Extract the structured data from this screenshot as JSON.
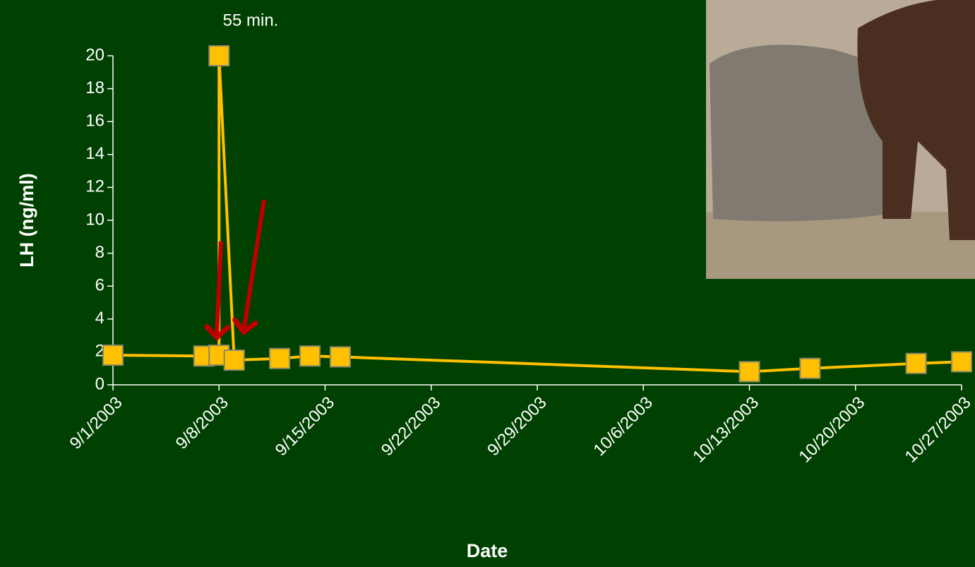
{
  "chart_data": {
    "type": "line",
    "annotation": "55 min.",
    "y_label": "LH (ng/ml)",
    "x_label": "Date",
    "x": [
      "9/1/2003",
      "9/7/2003",
      "9/8/2003",
      "9/8/2003",
      "9/9/2003",
      "9/12/2003",
      "9/14/2003",
      "9/16/2003",
      "10/13/2003",
      "10/17/2003",
      "10/24/2003",
      "10/27/2003"
    ],
    "values": [
      1.8,
      1.75,
      1.8,
      20,
      1.5,
      1.6,
      1.75,
      1.7,
      0.8,
      1.0,
      1.3,
      1.4
    ],
    "color": "#ffc000",
    "xlim": [
      "9/1/2003",
      "10/27/2003"
    ],
    "xticks": [
      "9/1/2003",
      "9/8/2003",
      "9/15/2003",
      "9/22/2003",
      "9/29/2003",
      "10/6/2003",
      "10/13/2003",
      "10/20/2003",
      "10/27/2003"
    ],
    "ylim": [
      0,
      20
    ],
    "yticks": [
      0,
      2,
      4,
      6,
      8,
      10,
      12,
      14,
      16,
      18,
      20
    ],
    "grid": false
  }
}
